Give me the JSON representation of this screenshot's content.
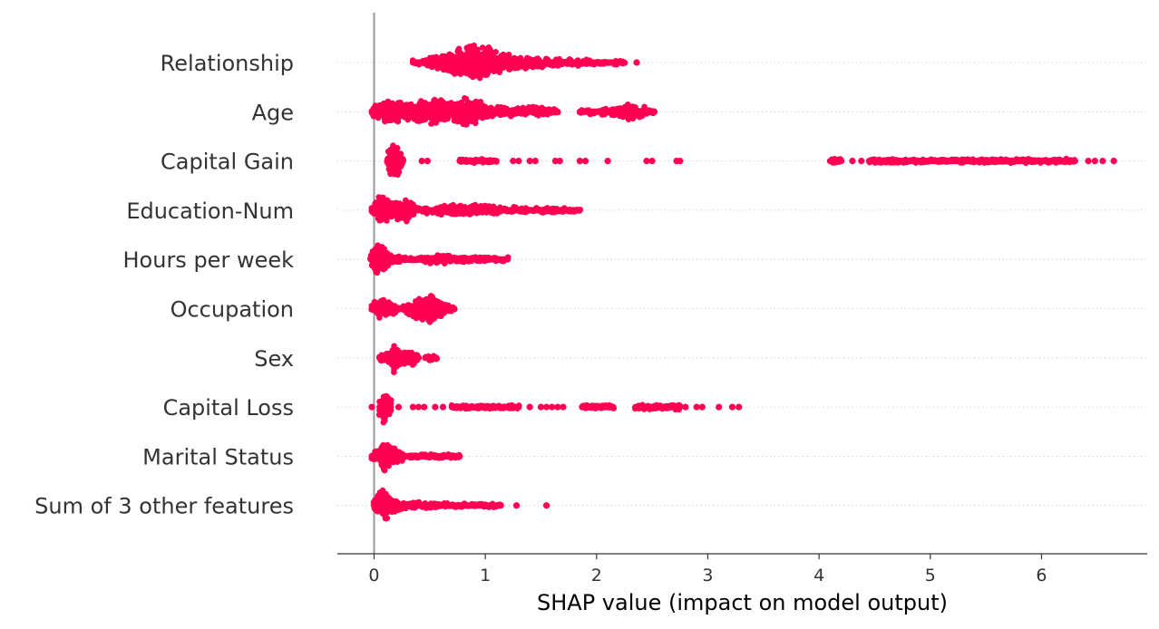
{
  "chart_data": {
    "type": "scatter",
    "subtype": "shap-beeswarm",
    "title": "",
    "xlabel": "SHAP value (impact on model output)",
    "ylabel": "",
    "xlim": [
      -0.33,
      6.95
    ],
    "x_ticks": [
      0,
      1,
      2,
      3,
      4,
      5,
      6
    ],
    "x_tick_labels": [
      "0",
      "1",
      "2",
      "3",
      "4",
      "5",
      "6"
    ],
    "grid": "horizontal dotted guide per feature",
    "legend": "none",
    "point_color": "#ff0052",
    "baseline_color": "#999999",
    "features": [
      {
        "name": "Relationship",
        "segments": [
          [
            0.35,
            2.25
          ]
        ],
        "points": [
          2.36
        ],
        "density": [
          [
            0.35,
            0.08
          ],
          [
            0.6,
            0.45
          ],
          [
            0.85,
            0.95
          ],
          [
            0.92,
            1.0
          ],
          [
            1.05,
            0.85
          ],
          [
            1.2,
            0.45
          ],
          [
            1.5,
            0.3
          ],
          [
            1.8,
            0.2
          ],
          [
            2.25,
            0.1
          ]
        ]
      },
      {
        "name": "Age",
        "segments": [
          [
            -0.02,
            1.65
          ],
          [
            1.85,
            2.52
          ]
        ],
        "points": [],
        "density": [
          [
            -0.02,
            0.3
          ],
          [
            0.05,
            0.6
          ],
          [
            0.15,
            0.7
          ],
          [
            0.3,
            0.5
          ],
          [
            0.5,
            0.7
          ],
          [
            0.6,
            0.8
          ],
          [
            0.7,
            0.6
          ],
          [
            0.83,
            0.9
          ],
          [
            0.92,
            0.75
          ],
          [
            1.0,
            0.4
          ],
          [
            1.2,
            0.25
          ],
          [
            1.45,
            0.3
          ],
          [
            1.65,
            0.15
          ],
          [
            1.85,
            0.1
          ],
          [
            2.1,
            0.2
          ],
          [
            2.3,
            0.45
          ],
          [
            2.4,
            0.35
          ],
          [
            2.52,
            0.1
          ]
        ]
      },
      {
        "name": "Capital Gain",
        "segments": [
          [
            0.12,
            0.26
          ],
          [
            0.77,
            1.1
          ],
          [
            4.1,
            4.2
          ],
          [
            4.45,
            6.3
          ]
        ],
        "points": [
          0.43,
          0.48,
          1.25,
          1.3,
          1.4,
          1.45,
          1.63,
          1.67,
          1.85,
          1.9,
          2.1,
          2.45,
          2.5,
          2.72,
          2.75,
          4.3,
          4.38,
          6.42,
          6.48,
          6.55,
          6.65
        ],
        "density": [
          [
            0.12,
            0.3
          ],
          [
            0.15,
            1.0
          ],
          [
            0.2,
            1.0
          ],
          [
            0.26,
            0.3
          ],
          [
            0.5,
            0.1
          ],
          [
            1.0,
            0.1
          ],
          [
            4.5,
            0.1
          ],
          [
            5.5,
            0.12
          ],
          [
            6.3,
            0.1
          ]
        ]
      },
      {
        "name": "Education-Num",
        "segments": [
          [
            -0.02,
            1.85
          ]
        ],
        "points": [],
        "density": [
          [
            -0.02,
            0.3
          ],
          [
            0.05,
            0.9
          ],
          [
            0.1,
            0.75
          ],
          [
            0.2,
            0.6
          ],
          [
            0.28,
            0.75
          ],
          [
            0.4,
            0.15
          ],
          [
            0.6,
            0.25
          ],
          [
            0.88,
            0.35
          ],
          [
            1.2,
            0.2
          ],
          [
            1.5,
            0.15
          ],
          [
            1.85,
            0.1
          ]
        ]
      },
      {
        "name": "Hours per week",
        "segments": [
          [
            -0.03,
            1.2
          ]
        ],
        "points": [],
        "density": [
          [
            -0.03,
            0.4
          ],
          [
            0.02,
            0.95
          ],
          [
            0.08,
            0.85
          ],
          [
            0.15,
            0.3
          ],
          [
            0.3,
            0.1
          ],
          [
            0.55,
            0.3
          ],
          [
            0.7,
            0.2
          ],
          [
            1.0,
            0.15
          ],
          [
            1.2,
            0.1
          ]
        ]
      },
      {
        "name": "Occupation",
        "segments": [
          [
            -0.02,
            0.72
          ]
        ],
        "points": [],
        "density": [
          [
            -0.02,
            0.3
          ],
          [
            0.05,
            0.6
          ],
          [
            0.15,
            0.4
          ],
          [
            0.25,
            0.15
          ],
          [
            0.4,
            0.6
          ],
          [
            0.5,
            0.9
          ],
          [
            0.56,
            0.55
          ],
          [
            0.62,
            0.45
          ],
          [
            0.72,
            0.1
          ]
        ]
      },
      {
        "name": "Sex",
        "segments": [
          [
            0.05,
            0.4
          ],
          [
            0.46,
            0.56
          ]
        ],
        "points": [],
        "density": [
          [
            0.05,
            0.2
          ],
          [
            0.16,
            0.45
          ],
          [
            0.18,
            0.9
          ],
          [
            0.22,
            0.55
          ],
          [
            0.3,
            0.35
          ],
          [
            0.35,
            0.45
          ],
          [
            0.4,
            0.15
          ],
          [
            0.46,
            0.15
          ],
          [
            0.56,
            0.15
          ]
        ]
      },
      {
        "name": "Capital Loss",
        "segments": [
          [
            0.05,
            0.15
          ],
          [
            0.7,
            1.3
          ],
          [
            1.87,
            2.15
          ],
          [
            2.35,
            2.75
          ]
        ],
        "points": [
          -0.02,
          0.22,
          0.35,
          0.4,
          0.45,
          0.55,
          0.62,
          1.4,
          1.5,
          1.55,
          1.6,
          1.65,
          1.7,
          2.8,
          2.9,
          2.95,
          3.1,
          3.22,
          3.28
        ],
        "density": [
          [
            0.05,
            0.5
          ],
          [
            0.1,
            1.0
          ],
          [
            0.15,
            0.45
          ],
          [
            0.7,
            0.1
          ],
          [
            1.3,
            0.1
          ],
          [
            1.87,
            0.15
          ],
          [
            2.15,
            0.1
          ],
          [
            2.35,
            0.15
          ],
          [
            2.7,
            0.15
          ]
        ]
      },
      {
        "name": "Marital Status",
        "segments": [
          [
            -0.02,
            0.77
          ]
        ],
        "points": [],
        "density": [
          [
            -0.02,
            0.25
          ],
          [
            0.05,
            0.45
          ],
          [
            0.1,
            1.0
          ],
          [
            0.13,
            0.7
          ],
          [
            0.2,
            0.45
          ],
          [
            0.3,
            0.15
          ],
          [
            0.5,
            0.1
          ],
          [
            0.77,
            0.1
          ]
        ]
      },
      {
        "name": "Sum of 3 other features",
        "segments": [
          [
            0.0,
            1.14
          ]
        ],
        "points": [
          1.28,
          1.55
        ],
        "density": [
          [
            0.0,
            0.35
          ],
          [
            0.05,
            0.8
          ],
          [
            0.1,
            1.0
          ],
          [
            0.15,
            0.5
          ],
          [
            0.25,
            0.25
          ],
          [
            0.5,
            0.15
          ],
          [
            0.8,
            0.12
          ],
          [
            1.14,
            0.08
          ]
        ]
      }
    ]
  }
}
